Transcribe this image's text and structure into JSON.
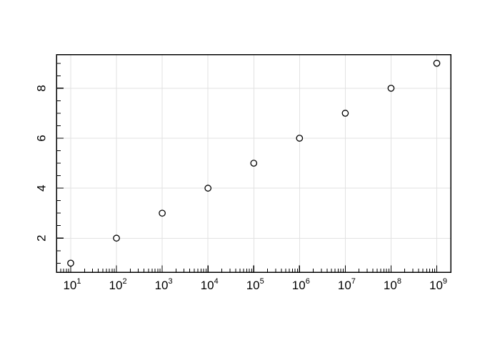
{
  "chart_data": {
    "type": "scatter",
    "title": "",
    "xlabel": "",
    "ylabel": "",
    "x": [
      10,
      100,
      1000,
      10000,
      100000,
      1000000,
      10000000,
      100000000,
      1000000000
    ],
    "y": [
      1,
      2,
      3,
      4,
      5,
      6,
      7,
      8,
      9
    ],
    "xscale": "log10",
    "yscale": "linear",
    "xlim_log10": [
      0.688,
      9.304
    ],
    "ylim": [
      0.63,
      9.35
    ],
    "x_major_ticks_log10": [
      1,
      2,
      3,
      4,
      5,
      6,
      7,
      8,
      9
    ],
    "x_tick_labels": [
      {
        "base": "10",
        "exp": "1"
      },
      {
        "base": "10",
        "exp": "2"
      },
      {
        "base": "10",
        "exp": "3"
      },
      {
        "base": "10",
        "exp": "4"
      },
      {
        "base": "10",
        "exp": "5"
      },
      {
        "base": "10",
        "exp": "6"
      },
      {
        "base": "10",
        "exp": "7"
      },
      {
        "base": "10",
        "exp": "8"
      },
      {
        "base": "10",
        "exp": "9"
      }
    ],
    "x_minor_mantissas": [
      2,
      3,
      4,
      5,
      6,
      7,
      8,
      9
    ],
    "y_ticks": [
      1,
      1.5,
      2,
      2.5,
      3,
      3.5,
      4,
      4.5,
      5,
      5.5,
      6,
      6.5,
      7,
      7.5,
      8,
      8.5,
      9
    ],
    "y_major_ticks": [
      2,
      4,
      6,
      8
    ],
    "y_tick_labels": [
      "2",
      "4",
      "6",
      "8"
    ],
    "grid": {
      "x_log10": [
        1,
        2,
        3,
        4,
        5,
        6,
        7,
        8,
        9
      ],
      "y": [
        2,
        4,
        6,
        8
      ],
      "on": true
    },
    "legend": null,
    "marker": {
      "shape": "open-circle",
      "radius": 4.2,
      "stroke_width": 1.3
    },
    "colors": {
      "background": "#ffffff",
      "grid": "#e2e2e2",
      "axis": "#000000",
      "tick": "#000000",
      "label": "#000000",
      "marker_stroke": "#000000",
      "marker_fill": "#ffffff"
    }
  }
}
